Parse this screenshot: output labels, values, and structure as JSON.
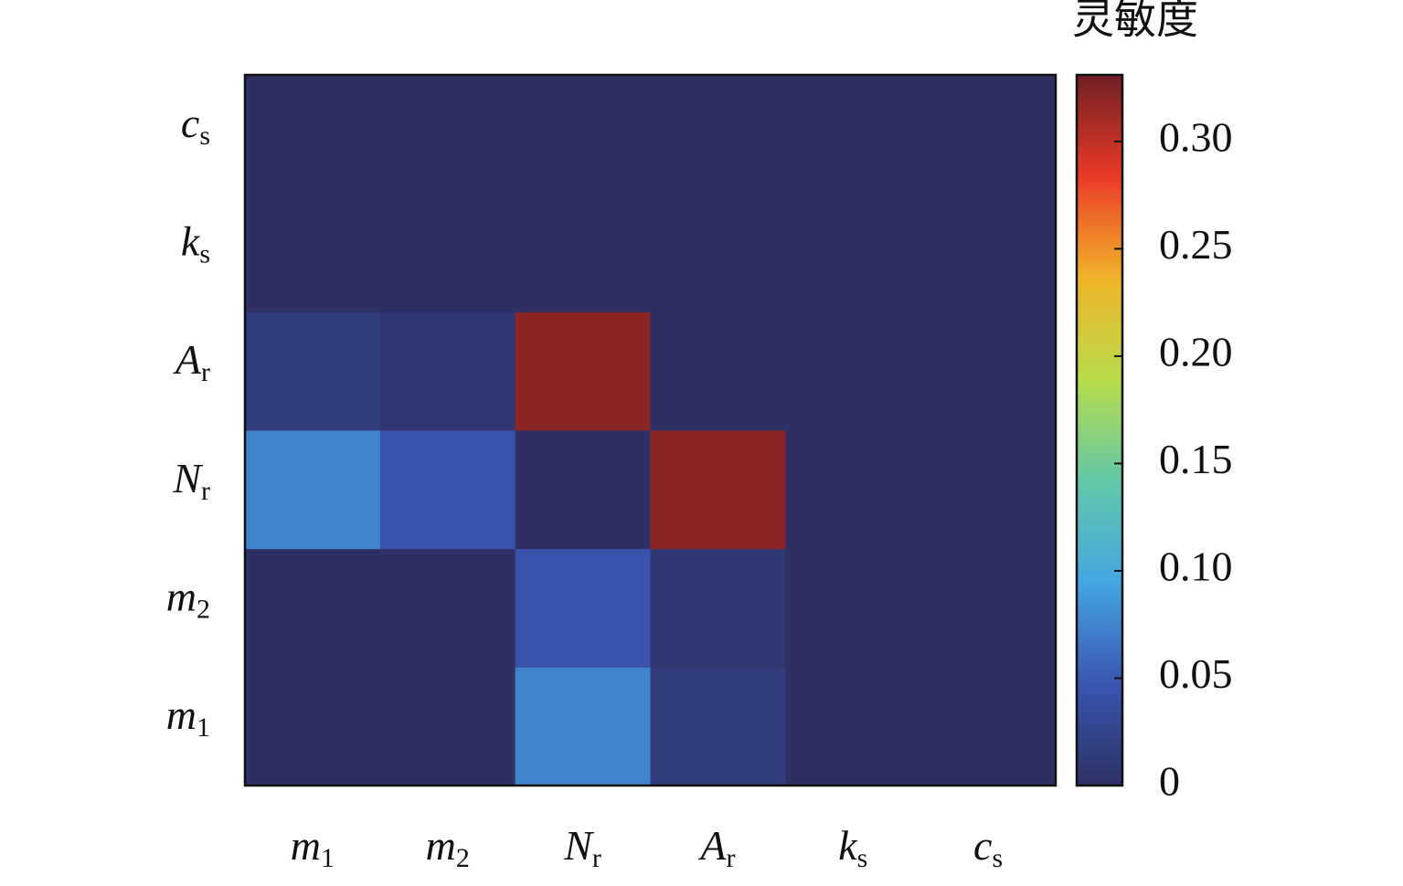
{
  "chart_data": {
    "type": "heatmap",
    "x_categories": [
      {
        "base": "m",
        "sub": "1"
      },
      {
        "base": "m",
        "sub": "2"
      },
      {
        "base": "N",
        "sub": "r"
      },
      {
        "base": "A",
        "sub": "r"
      },
      {
        "base": "k",
        "sub": "s"
      },
      {
        "base": "c",
        "sub": "s"
      }
    ],
    "y_categories": [
      {
        "base": "m",
        "sub": "1"
      },
      {
        "base": "m",
        "sub": "2"
      },
      {
        "base": "N",
        "sub": "r"
      },
      {
        "base": "A",
        "sub": "r"
      },
      {
        "base": "k",
        "sub": "s"
      },
      {
        "base": "c",
        "sub": "s"
      }
    ],
    "values": [
      [
        0,
        0,
        0.075,
        0.015,
        0,
        0
      ],
      [
        0,
        0,
        0.045,
        0.008,
        0,
        0
      ],
      [
        0.075,
        0.045,
        0,
        0.32,
        0,
        0
      ],
      [
        0.015,
        0.008,
        0.32,
        0,
        0,
        0
      ],
      [
        0,
        0,
        0,
        0,
        0,
        0
      ],
      [
        0,
        0,
        0,
        0,
        0,
        0
      ]
    ],
    "colorbar": {
      "title": "灵敏度",
      "clim": [
        0,
        0.331
      ],
      "ticks": [
        0,
        {
          "value": 0.05,
          "label": "0.05"
        },
        {
          "value": 0.1,
          "label": "0.10"
        },
        {
          "value": 0.15,
          "label": "0.15"
        },
        {
          "value": 0.2,
          "label": "0.20"
        },
        {
          "value": 0.25,
          "label": "0.25"
        },
        {
          "value": 0.3,
          "label": "0.30"
        }
      ],
      "colors": [
        "#2e3064",
        "#3a55b0",
        "#45a5e0",
        "#64c8a8",
        "#b8dc4a",
        "#f0b42a",
        "#ea3a28",
        "#6e1f23"
      ]
    }
  }
}
